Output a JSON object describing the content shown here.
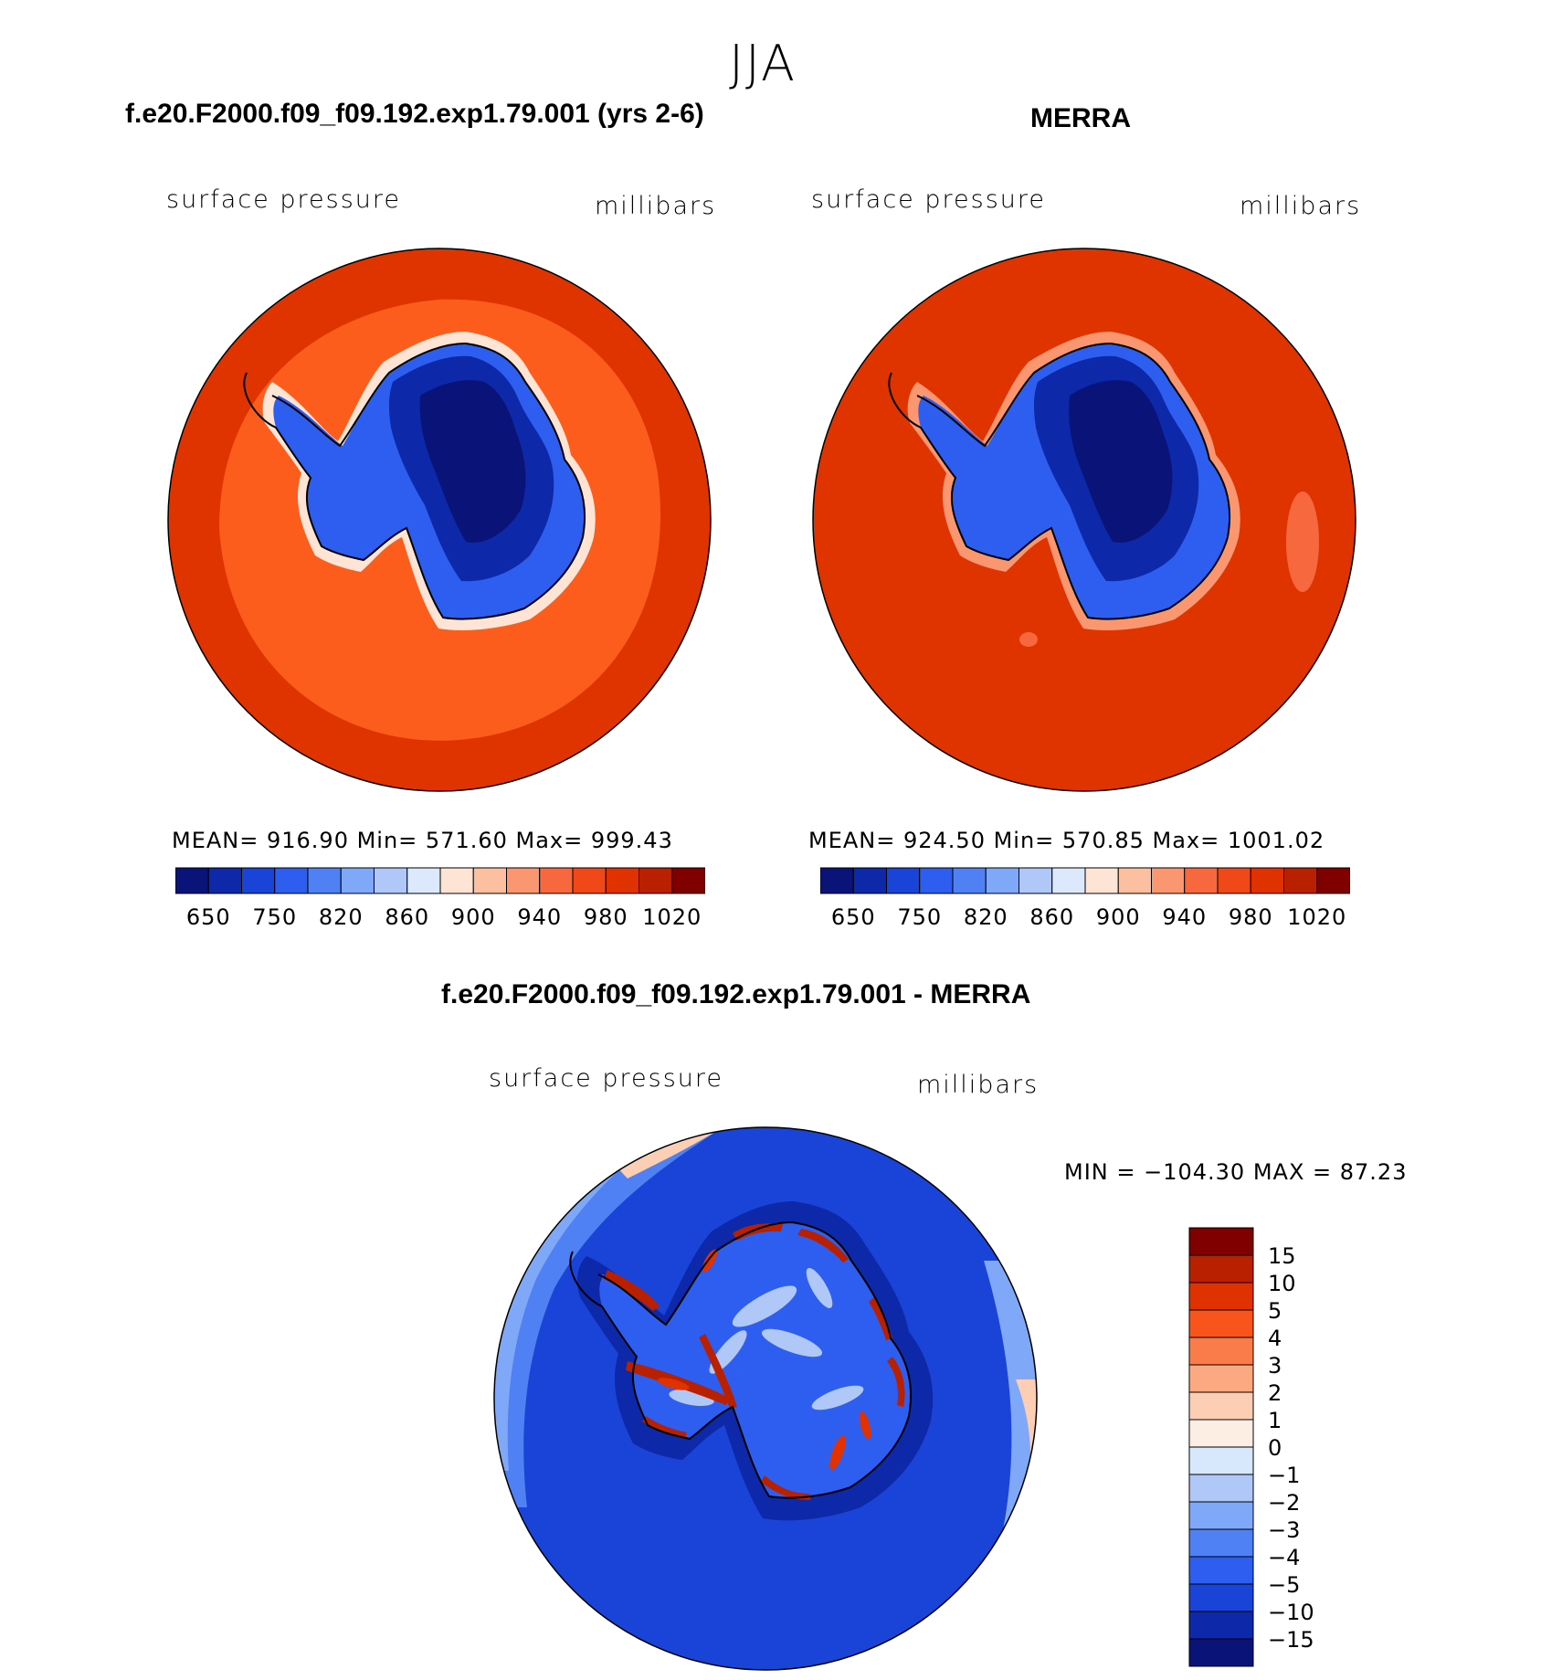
{
  "figure_title": "JJA",
  "panels": [
    {
      "title": "f.e20.F2000.f09_f09.192.exp1.79.001 (yrs 2-6)",
      "left_label": "surface pressure",
      "right_label": "millibars",
      "stats": "MEAN= 916.90   Min= 571.60   Max= 999.43"
    },
    {
      "title": "MERRA",
      "left_label": "surface pressure",
      "right_label": "millibars",
      "stats": "MEAN= 924.50   Min= 570.85   Max= 1001.02"
    },
    {
      "title": "f.e20.F2000.f09_f09.192.exp1.79.001 - MERRA",
      "left_label": "surface pressure",
      "right_label": "millibars",
      "stats": "MIN = −104.30 MAX =   87.23"
    }
  ],
  "chart_data": [
    {
      "type": "heatmap",
      "title": "f.e20.F2000.f09_f09.192.exp1.79.001 (yrs 2-6)",
      "variable": "surface pressure",
      "units": "millibars",
      "projection": "south polar stereographic",
      "mean": 916.9,
      "min": 571.6,
      "max": 999.43,
      "colorbar_tick_labels": [
        "650",
        "750",
        "820",
        "860",
        "900",
        "940",
        "980",
        "1020"
      ],
      "colorbar_colors": [
        "#0a1478",
        "#0d28a8",
        "#1a44d8",
        "#2e5ef0",
        "#4f80f4",
        "#80a8f8",
        "#b0c8f8",
        "#dce8fc",
        "#fde4d4",
        "#fcc0a0",
        "#fa9670",
        "#f8683e",
        "#f04818",
        "#e03200",
        "#b82000",
        "#800000"
      ],
      "background_color": "#e03400",
      "ring_color": "#fc5c1c"
    },
    {
      "type": "heatmap",
      "title": "MERRA",
      "variable": "surface pressure",
      "units": "millibars",
      "projection": "south polar stereographic",
      "mean": 924.5,
      "min": 570.85,
      "max": 1001.02,
      "colorbar_tick_labels": [
        "650",
        "750",
        "820",
        "860",
        "900",
        "940",
        "980",
        "1020"
      ],
      "colorbar_colors": [
        "#0a1478",
        "#0d28a8",
        "#1a44d8",
        "#2e5ef0",
        "#4f80f4",
        "#80a8f8",
        "#b0c8f8",
        "#dce8fc",
        "#fde4d4",
        "#fcc0a0",
        "#fa9670",
        "#f8683e",
        "#f04818",
        "#e03200",
        "#b82000",
        "#800000"
      ],
      "background_color": "#e03400"
    },
    {
      "type": "heatmap",
      "title": "f.e20.F2000.f09_f09.192.exp1.79.001 - MERRA",
      "variable": "surface pressure",
      "units": "millibars",
      "projection": "south polar stereographic",
      "min": -104.3,
      "max": 87.23,
      "colorbar_tick_labels": [
        "15",
        "10",
        "5",
        "4",
        "3",
        "2",
        "1",
        "0",
        "−1",
        "−2",
        "−3",
        "−4",
        "−5",
        "−10",
        "−15"
      ],
      "colorbar_colors": [
        "#800000",
        "#b82000",
        "#e03200",
        "#f8541c",
        "#fa7c4a",
        "#fca880",
        "#fccfb4",
        "#fdeee4",
        "#d8e8fc",
        "#b0c8f8",
        "#80a8f8",
        "#4f80f4",
        "#2e5ef0",
        "#1a44d8",
        "#0d28a8",
        "#0a1478"
      ],
      "background_color": "#1a44d8"
    }
  ]
}
